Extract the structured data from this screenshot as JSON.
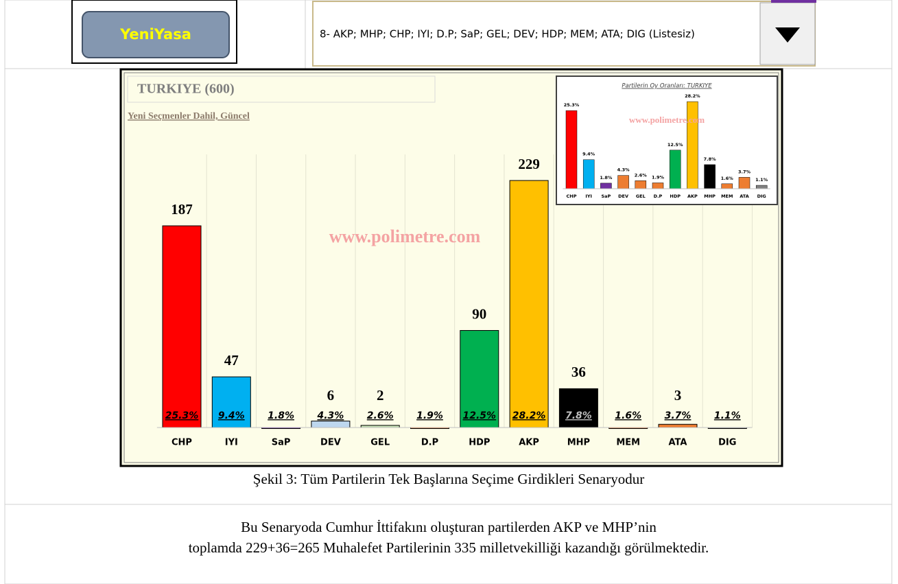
{
  "button": "YeniYasa",
  "dropdown": "8- AKP; MHP; CHP; IYI; D.P; SaP; GEL; DEV; HDP; MEM; ATA; DIG (Listesiz)",
  "chart_data": [
    {
      "type": "bar",
      "title": "TURKIYE (600)",
      "subtitle": "Yeni Seçmenler Dahil, Güncel",
      "watermark": "www.polimetre.com",
      "categories": [
        "CHP",
        "IYI",
        "SaP",
        "DEV",
        "GEL",
        "D.P",
        "HDP",
        "AKP",
        "MHP",
        "MEM",
        "ATA",
        "DIG"
      ],
      "values": [
        187,
        47,
        0,
        6,
        2,
        0,
        90,
        229,
        36,
        0,
        3,
        0
      ],
      "share_values": [
        25.3,
        9.4,
        1.8,
        4.3,
        2.6,
        1.9,
        12.5,
        28.2,
        7.8,
        1.6,
        3.7,
        1.1
      ],
      "share_labels": [
        "25.3%",
        "9.4%",
        "1.8%",
        "4.3%",
        "2.6%",
        "1.9%",
        "12.5%",
        "28.2%",
        "7.8%",
        "1.6%",
        "3.7%",
        "1.1%"
      ],
      "colors": [
        "#ff0000",
        "#00b0f0",
        "#7030a0",
        "#bdd7ee",
        "#c5e0b4",
        "#ed7d31",
        "#00b050",
        "#ffc000",
        "#000000",
        "#ed7d31",
        "#ed7d31",
        "#808080"
      ],
      "ylim": [
        0,
        250
      ]
    },
    {
      "type": "bar",
      "title": "Partilerin Oy Oranları: TURKIYE",
      "watermark": "www.polimetre.com",
      "categories": [
        "CHP",
        "IYI",
        "SaP",
        "DEV",
        "GEL",
        "D.P",
        "HDP",
        "AKP",
        "MHP",
        "MEM",
        "ATA",
        "DIG"
      ],
      "values": [
        25.3,
        9.4,
        1.8,
        4.3,
        2.6,
        1.9,
        12.5,
        28.2,
        7.8,
        1.6,
        3.7,
        1.1
      ],
      "value_labels": [
        "25.3%",
        "9.4%",
        "1.8%",
        "4.3%",
        "2.6%",
        "1.9%",
        "12.5%",
        "28.2%",
        "7.8%",
        "1.6%",
        "3.7%",
        "1.1%"
      ],
      "colors": [
        "#ff0000",
        "#00b0f0",
        "#7030a0",
        "#ed7d31",
        "#ed7d31",
        "#ed7d31",
        "#00b050",
        "#ffc000",
        "#000000",
        "#ed7d31",
        "#ed7d31",
        "#808080"
      ],
      "ylim": [
        0,
        30
      ]
    }
  ],
  "caption": "Şekil 3: Tüm Partilerin Tek Başlarına Seçime Girdikleri Senaryodur",
  "paragraph": [
    "Bu Senaryoda Cumhur İttifakını oluşturan partilerden AKP ve MHP’nin",
    "toplamda 229+36=265 Muhalefet Partilerinin 335 milletvekilliği kazandığı görülmektedir."
  ]
}
